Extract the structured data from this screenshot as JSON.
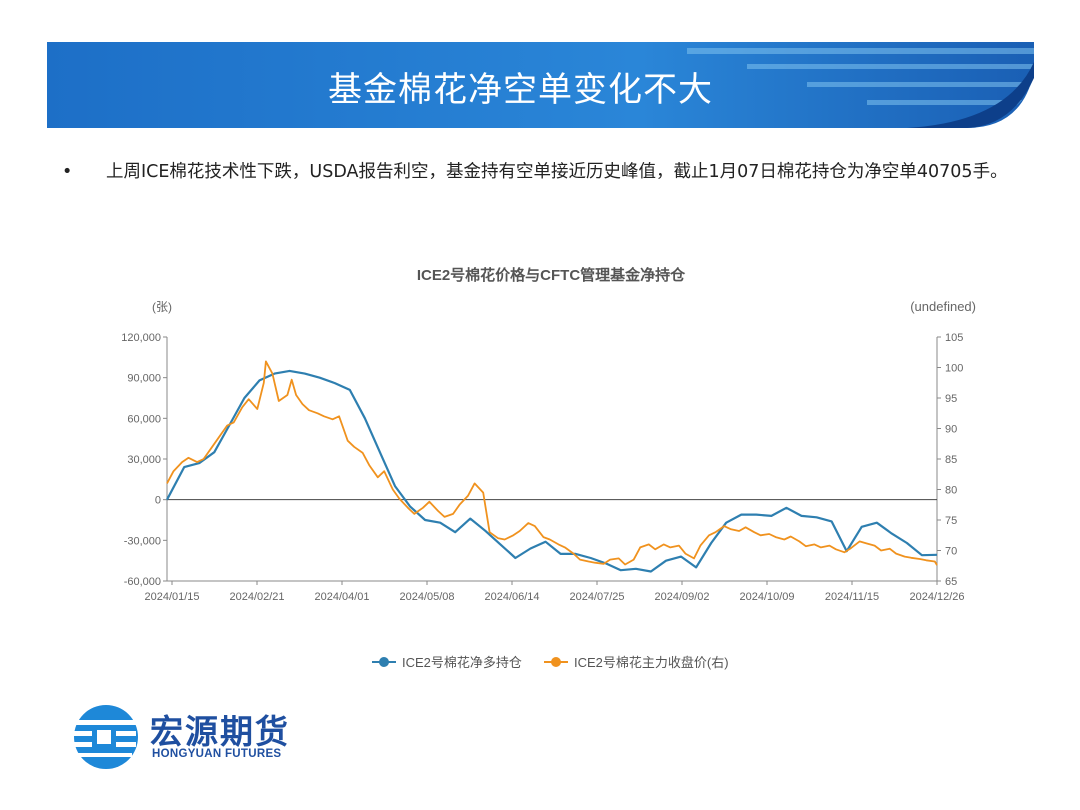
{
  "slide": {
    "title": "基金棉花净空单变化不大",
    "bullet_symbol": "•",
    "bullet_text": "上周ICE棉花技术性下跌，USDA报告利空，基金持有空单接近历史峰值，截止1月07日棉花持仓为净空单40705手。"
  },
  "logo": {
    "cn": "宏源期货",
    "en": "HONGYUAN FUTURES"
  },
  "colors": {
    "banner_dark": "#1565c0",
    "banner_light": "#3d9be0",
    "series_blue": "#2e7fb0",
    "series_orange": "#f0921e"
  },
  "chart_data": {
    "type": "line",
    "title": "ICE2号棉花价格与CFTC管理基金净持仓",
    "ylabel_left": "(张)",
    "ylabel_right": "(undefined)",
    "x_ticks": [
      "2024/01/15",
      "2024/02/21",
      "2024/04/01",
      "2024/05/08",
      "2024/06/14",
      "2024/07/25",
      "2024/09/02",
      "2024/10/09",
      "2024/11/15",
      "2024/12/26"
    ],
    "x_range": [
      "2024-01-15",
      "2025-01-07"
    ],
    "ylim_left": [
      -60000,
      120000
    ],
    "yticks_left": [
      "120,000",
      "90,000",
      "60,000",
      "30,000",
      "0",
      "-30,000",
      "-60,000"
    ],
    "ylim_right": [
      65,
      105
    ],
    "yticks_right": [
      "105",
      "100",
      "95",
      "90",
      "85",
      "80",
      "75",
      "70",
      "65"
    ],
    "legend_position": "bottom",
    "series": [
      {
        "name": "ICE2号棉花净多持仓",
        "axis": "left",
        "points": [
          [
            "2024-01-15",
            0
          ],
          [
            "2024-01-23",
            24000
          ],
          [
            "2024-01-30",
            27000
          ],
          [
            "2024-02-06",
            35000
          ],
          [
            "2024-02-13",
            55000
          ],
          [
            "2024-02-20",
            75000
          ],
          [
            "2024-02-27",
            88000
          ],
          [
            "2024-03-05",
            93000
          ],
          [
            "2024-03-12",
            95000
          ],
          [
            "2024-03-19",
            93000
          ],
          [
            "2024-03-26",
            90000
          ],
          [
            "2024-04-02",
            86000
          ],
          [
            "2024-04-09",
            81000
          ],
          [
            "2024-04-16",
            60000
          ],
          [
            "2024-04-23",
            35000
          ],
          [
            "2024-04-30",
            10000
          ],
          [
            "2024-05-07",
            -5000
          ],
          [
            "2024-05-14",
            -15000
          ],
          [
            "2024-05-21",
            -17000
          ],
          [
            "2024-05-28",
            -24000
          ],
          [
            "2024-06-04",
            -14000
          ],
          [
            "2024-06-11",
            -23000
          ],
          [
            "2024-06-18",
            -33000
          ],
          [
            "2024-06-25",
            -43000
          ],
          [
            "2024-07-02",
            -36000
          ],
          [
            "2024-07-09",
            -31000
          ],
          [
            "2024-07-16",
            -40000
          ],
          [
            "2024-07-23",
            -40000
          ],
          [
            "2024-07-30",
            -43000
          ],
          [
            "2024-08-06",
            -47000
          ],
          [
            "2024-08-13",
            -52000
          ],
          [
            "2024-08-20",
            -51000
          ],
          [
            "2024-08-27",
            -53000
          ],
          [
            "2024-09-03",
            -45000
          ],
          [
            "2024-09-10",
            -42000
          ],
          [
            "2024-09-17",
            -50000
          ],
          [
            "2024-09-24",
            -32000
          ],
          [
            "2024-10-01",
            -17000
          ],
          [
            "2024-10-08",
            -11000
          ],
          [
            "2024-10-15",
            -11000
          ],
          [
            "2024-10-22",
            -12000
          ],
          [
            "2024-10-29",
            -6000
          ],
          [
            "2024-11-05",
            -12000
          ],
          [
            "2024-11-12",
            -13000
          ],
          [
            "2024-11-19",
            -16000
          ],
          [
            "2024-11-26",
            -38000
          ],
          [
            "2024-12-03",
            -20000
          ],
          [
            "2024-12-10",
            -17000
          ],
          [
            "2024-12-17",
            -25000
          ],
          [
            "2024-12-24",
            -32000
          ],
          [
            "2024-12-31",
            -41000
          ],
          [
            "2025-01-07",
            -40705
          ]
        ]
      },
      {
        "name": "ICE2号棉花主力收盘价(右)",
        "axis": "right",
        "points": [
          [
            "2024-01-15",
            81
          ],
          [
            "2024-01-18",
            83
          ],
          [
            "2024-01-22",
            84.5
          ],
          [
            "2024-01-25",
            85.2
          ],
          [
            "2024-01-29",
            84.5
          ],
          [
            "2024-02-01",
            85
          ],
          [
            "2024-02-05",
            87
          ],
          [
            "2024-02-08",
            88.5
          ],
          [
            "2024-02-12",
            90.5
          ],
          [
            "2024-02-15",
            91
          ],
          [
            "2024-02-19",
            93.5
          ],
          [
            "2024-02-22",
            94.8
          ],
          [
            "2024-02-26",
            93.2
          ],
          [
            "2024-02-29",
            97.5
          ],
          [
            "2024-03-01",
            101
          ],
          [
            "2024-03-04",
            99
          ],
          [
            "2024-03-07",
            94.5
          ],
          [
            "2024-03-11",
            95.5
          ],
          [
            "2024-03-13",
            98
          ],
          [
            "2024-03-15",
            95.5
          ],
          [
            "2024-03-18",
            94
          ],
          [
            "2024-03-21",
            93
          ],
          [
            "2024-03-25",
            92.5
          ],
          [
            "2024-03-28",
            92
          ],
          [
            "2024-04-01",
            91.5
          ],
          [
            "2024-04-04",
            92
          ],
          [
            "2024-04-08",
            88
          ],
          [
            "2024-04-11",
            87
          ],
          [
            "2024-04-15",
            86
          ],
          [
            "2024-04-18",
            84
          ],
          [
            "2024-04-22",
            82
          ],
          [
            "2024-04-25",
            83
          ],
          [
            "2024-04-29",
            80
          ],
          [
            "2024-05-02",
            78.5
          ],
          [
            "2024-05-06",
            77
          ],
          [
            "2024-05-09",
            76
          ],
          [
            "2024-05-13",
            77
          ],
          [
            "2024-05-16",
            78
          ],
          [
            "2024-05-20",
            76.5
          ],
          [
            "2024-05-23",
            75.5
          ],
          [
            "2024-05-27",
            76
          ],
          [
            "2024-05-30",
            77.5
          ],
          [
            "2024-06-03",
            79
          ],
          [
            "2024-06-06",
            81
          ],
          [
            "2024-06-10",
            79.5
          ],
          [
            "2024-06-13",
            73
          ],
          [
            "2024-06-17",
            72
          ],
          [
            "2024-06-20",
            71.8
          ],
          [
            "2024-06-24",
            72.5
          ],
          [
            "2024-06-27",
            73.2
          ],
          [
            "2024-07-01",
            74.5
          ],
          [
            "2024-07-04",
            74
          ],
          [
            "2024-07-08",
            72.2
          ],
          [
            "2024-07-11",
            71.8
          ],
          [
            "2024-07-15",
            71
          ],
          [
            "2024-07-18",
            70.5
          ],
          [
            "2024-07-22",
            69.5
          ],
          [
            "2024-07-25",
            68.5
          ],
          [
            "2024-07-29",
            68.2
          ],
          [
            "2024-08-01",
            68
          ],
          [
            "2024-08-05",
            67.8
          ],
          [
            "2024-08-08",
            68.5
          ],
          [
            "2024-08-12",
            68.7
          ],
          [
            "2024-08-15",
            67.7
          ],
          [
            "2024-08-19",
            68.5
          ],
          [
            "2024-08-22",
            70.5
          ],
          [
            "2024-08-26",
            71
          ],
          [
            "2024-08-29",
            70.2
          ],
          [
            "2024-09-02",
            71
          ],
          [
            "2024-09-05",
            70.5
          ],
          [
            "2024-09-09",
            70.8
          ],
          [
            "2024-09-12",
            69.5
          ],
          [
            "2024-09-16",
            68.7
          ],
          [
            "2024-09-19",
            70.8
          ],
          [
            "2024-09-23",
            72.5
          ],
          [
            "2024-09-26",
            73
          ],
          [
            "2024-09-30",
            74
          ],
          [
            "2024-10-03",
            73.5
          ],
          [
            "2024-10-07",
            73.2
          ],
          [
            "2024-10-10",
            73.8
          ],
          [
            "2024-10-14",
            73
          ],
          [
            "2024-10-17",
            72.5
          ],
          [
            "2024-10-21",
            72.7
          ],
          [
            "2024-10-24",
            72.2
          ],
          [
            "2024-10-28",
            71.8
          ],
          [
            "2024-10-31",
            72.3
          ],
          [
            "2024-11-04",
            71.5
          ],
          [
            "2024-11-07",
            70.7
          ],
          [
            "2024-11-11",
            71
          ],
          [
            "2024-11-14",
            70.5
          ],
          [
            "2024-11-18",
            70.8
          ],
          [
            "2024-11-21",
            70.2
          ],
          [
            "2024-11-25",
            69.7
          ],
          [
            "2024-11-28",
            70.4
          ],
          [
            "2024-12-02",
            71.5
          ],
          [
            "2024-12-05",
            71.2
          ],
          [
            "2024-12-09",
            70.8
          ],
          [
            "2024-12-12",
            70
          ],
          [
            "2024-12-16",
            70.3
          ],
          [
            "2024-12-19",
            69.5
          ],
          [
            "2024-12-23",
            69
          ],
          [
            "2024-12-26",
            68.8
          ],
          [
            "2024-12-30",
            68.6
          ],
          [
            "2025-01-02",
            68.4
          ],
          [
            "2025-01-06",
            68.2
          ],
          [
            "2025-01-07",
            67.6
          ]
        ]
      }
    ]
  }
}
